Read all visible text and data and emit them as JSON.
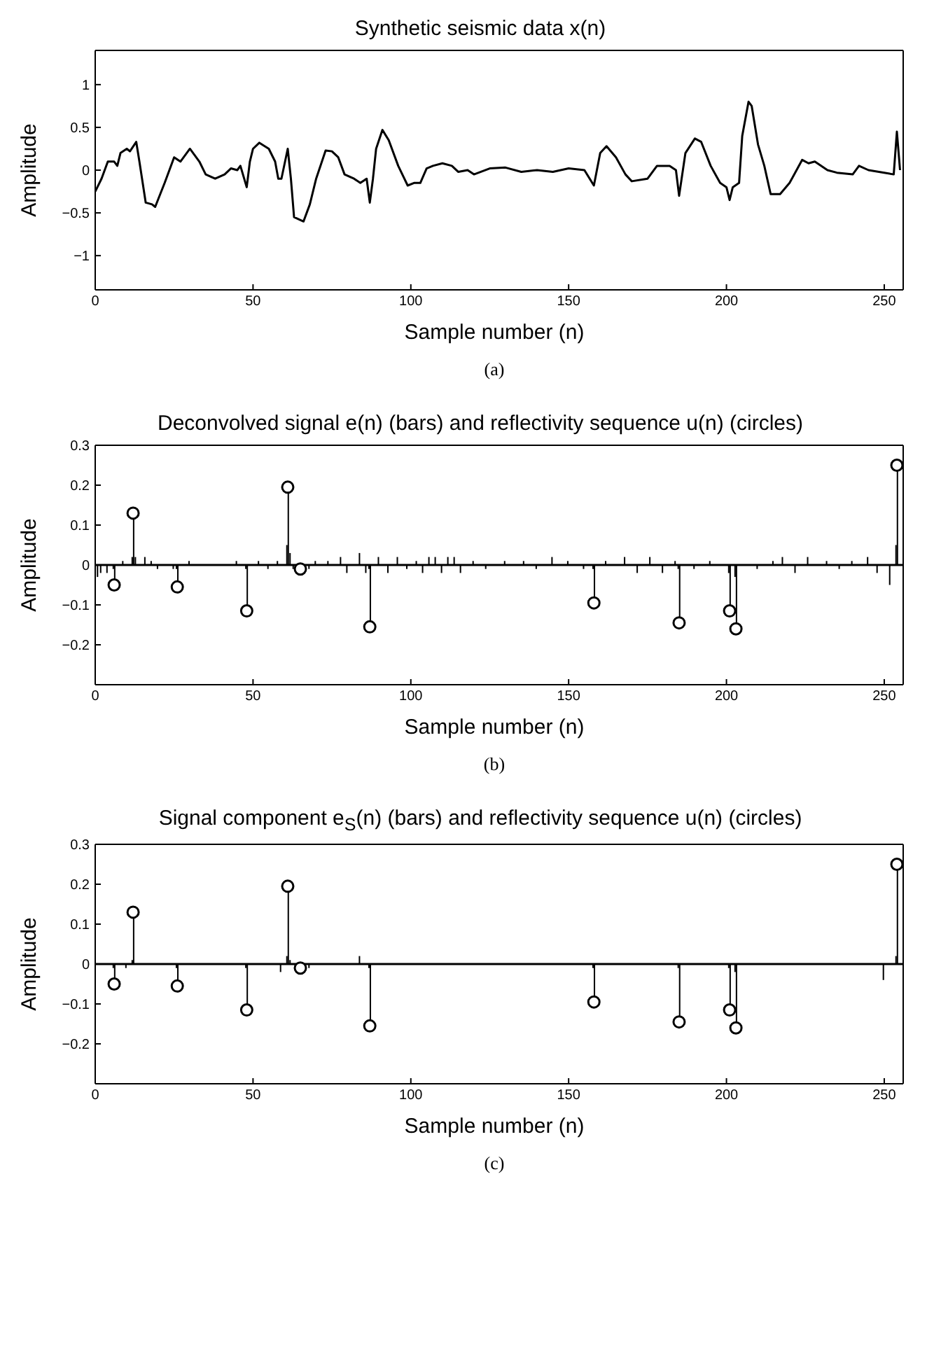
{
  "chart_data": [
    {
      "type": "line",
      "title": "Synthetic seismic data x(n)",
      "xlabel": "Sample number (n)",
      "ylabel": "Amplitude",
      "annotations": [
        "(a)"
      ],
      "xlim": [
        0,
        256
      ],
      "xticks": [
        0,
        50,
        100,
        150,
        200,
        250
      ],
      "ylim": [
        -1.4,
        1.4
      ],
      "yticks": [
        -1,
        -0.5,
        0,
        0.5,
        1
      ],
      "grid": false,
      "legend": false,
      "marker": "none",
      "line_style": "solid",
      "series": [
        {
          "color": "#000000",
          "x": [
            0,
            2,
            4,
            6,
            7,
            8,
            10,
            11,
            13,
            14,
            16,
            18,
            19,
            22,
            25,
            27,
            30,
            33,
            35,
            38,
            41,
            43,
            45,
            46,
            48,
            49,
            50,
            52,
            55,
            57,
            58,
            59,
            61,
            62,
            63,
            66,
            68,
            70,
            73,
            75,
            77,
            79,
            82,
            84,
            86,
            87,
            88,
            89,
            91,
            93,
            96,
            99,
            101,
            103,
            105,
            107,
            110,
            113,
            115,
            118,
            120,
            125,
            130,
            135,
            140,
            145,
            150,
            155,
            158,
            160,
            162,
            165,
            168,
            170,
            175,
            178,
            182,
            184,
            185,
            187,
            190,
            192,
            195,
            198,
            200,
            201,
            202,
            204,
            205,
            207,
            208,
            210,
            212,
            214,
            217,
            220,
            224,
            226,
            228,
            232,
            235,
            240,
            242,
            245,
            250,
            253,
            254,
            255
          ],
          "values": [
            -0.25,
            -0.1,
            0.1,
            0.1,
            0.05,
            0.2,
            0.25,
            0.22,
            0.33,
            0.1,
            -0.38,
            -0.4,
            -0.43,
            -0.15,
            0.15,
            0.1,
            0.25,
            0.1,
            -0.05,
            -0.1,
            -0.05,
            0.02,
            0,
            0.05,
            -0.2,
            0.1,
            0.25,
            0.32,
            0.25,
            0.1,
            -0.1,
            -0.1,
            0.25,
            -0.1,
            -0.55,
            -0.6,
            -0.4,
            -0.1,
            0.23,
            0.22,
            0.15,
            -0.05,
            -0.1,
            -0.15,
            -0.1,
            -0.38,
            -0.1,
            0.25,
            0.47,
            0.35,
            0.05,
            -0.18,
            -0.15,
            -0.15,
            0.02,
            0.05,
            0.08,
            0.05,
            -0.02,
            0,
            -0.05,
            0.02,
            0.03,
            -0.02,
            0,
            -0.02,
            0.02,
            0,
            -0.18,
            0.2,
            0.28,
            0.15,
            -0.05,
            -0.13,
            -0.1,
            0.05,
            0.05,
            0,
            -0.3,
            0.2,
            0.37,
            0.33,
            0.05,
            -0.15,
            -0.2,
            -0.35,
            -0.2,
            -0.15,
            0.4,
            0.8,
            0.75,
            0.3,
            0.05,
            -0.28,
            -0.28,
            -0.15,
            0.12,
            0.08,
            0.1,
            0,
            -0.03,
            -0.05,
            0.05,
            0,
            -0.03,
            -0.05,
            0.45,
            0
          ]
        }
      ]
    },
    {
      "type": "bar",
      "title": "Deconvolved signal e(n) (bars) and reflectivity sequence u(n) (circles)",
      "xlabel": "Sample number (n)",
      "ylabel": "Amplitude",
      "annotations": [
        "(b)"
      ],
      "xlim": [
        0,
        256
      ],
      "xticks": [
        0,
        50,
        100,
        150,
        200,
        250
      ],
      "ylim": [
        -0.3,
        0.3
      ],
      "yticks": [
        -0.2,
        -0.1,
        0,
        0.1,
        0.2,
        0.3
      ],
      "grid": false,
      "legend": false,
      "ref_lines": [
        {
          "axis": "y",
          "value": 0,
          "color": "#000000"
        }
      ],
      "series": [
        {
          "color": "#000000",
          "x": [
            1,
            2,
            4,
            6,
            9,
            12,
            13,
            16,
            18,
            20,
            25,
            26,
            30,
            45,
            48,
            52,
            55,
            58,
            61,
            62,
            63,
            68,
            70,
            74,
            78,
            80,
            84,
            86,
            87,
            90,
            93,
            96,
            99,
            102,
            104,
            106,
            108,
            110,
            112,
            114,
            116,
            120,
            124,
            130,
            136,
            140,
            145,
            150,
            155,
            158,
            162,
            168,
            172,
            176,
            180,
            184,
            185,
            190,
            195,
            201,
            203,
            210,
            215,
            218,
            222,
            226,
            232,
            236,
            240,
            245,
            248,
            252,
            254
          ],
          "values": [
            -0.03,
            -0.02,
            -0.02,
            -0.01,
            0.01,
            0.02,
            0.02,
            0.02,
            0.01,
            -0.01,
            -0.01,
            -0.01,
            0.01,
            0.01,
            -0.01,
            0.01,
            -0.01,
            0.01,
            0.05,
            0.03,
            -0.01,
            -0.01,
            0.01,
            0.01,
            0.02,
            -0.02,
            0.03,
            -0.02,
            -0.01,
            0.02,
            -0.02,
            0.02,
            -0.01,
            0.01,
            -0.02,
            0.02,
            0.02,
            -0.02,
            0.02,
            0.02,
            -0.02,
            0.01,
            -0.01,
            0.01,
            0.01,
            -0.01,
            0.02,
            0.01,
            -0.01,
            -0.01,
            0.01,
            0.02,
            -0.02,
            0.02,
            -0.02,
            0.01,
            -0.01,
            -0.01,
            0.01,
            -0.02,
            -0.03,
            -0.01,
            0.01,
            0.02,
            -0.02,
            0.02,
            0.01,
            -0.01,
            0.01,
            0.02,
            -0.02,
            -0.05,
            0.05
          ]
        },
        {
          "type": "lollipop",
          "marker": "circle",
          "color": "#000000",
          "x": [
            6,
            12,
            26,
            48,
            61,
            65,
            87,
            158,
            185,
            201,
            203,
            254
          ],
          "values": [
            -0.05,
            0.13,
            -0.055,
            -0.115,
            0.195,
            -0.01,
            -0.155,
            -0.095,
            -0.145,
            -0.115,
            -0.16,
            0.25
          ]
        }
      ]
    },
    {
      "type": "bar",
      "title": "Signal component e$_{S}$(n) (bars) and reflectivity sequence u(n) (circles)",
      "xlabel": "Sample number (n)",
      "ylabel": "Amplitude",
      "annotations": [
        "(c)"
      ],
      "xlim": [
        0,
        256
      ],
      "xticks": [
        0,
        50,
        100,
        150,
        200,
        250
      ],
      "ylim": [
        -0.3,
        0.3
      ],
      "yticks": [
        -0.2,
        -0.1,
        0,
        0.1,
        0.2,
        0.3
      ],
      "grid": false,
      "legend": false,
      "ref_lines": [
        {
          "axis": "y",
          "value": 0,
          "color": "#000000"
        }
      ],
      "series": [
        {
          "color": "#000000",
          "x": [
            6,
            10,
            12,
            26,
            48,
            59,
            61,
            62,
            68,
            84,
            87,
            158,
            185,
            201,
            203,
            250,
            254
          ],
          "values": [
            -0.01,
            -0.01,
            0.01,
            -0.01,
            -0.01,
            -0.02,
            0.02,
            0.01,
            -0.01,
            0.02,
            -0.01,
            -0.01,
            -0.01,
            -0.01,
            -0.02,
            -0.04,
            0.02
          ]
        },
        {
          "type": "lollipop",
          "marker": "circle",
          "color": "#000000",
          "x": [
            6,
            12,
            26,
            48,
            61,
            65,
            87,
            158,
            185,
            201,
            203,
            254
          ],
          "values": [
            -0.05,
            0.13,
            -0.055,
            -0.115,
            0.195,
            -0.01,
            -0.155,
            -0.095,
            -0.145,
            -0.115,
            -0.16,
            0.25
          ]
        }
      ]
    }
  ]
}
